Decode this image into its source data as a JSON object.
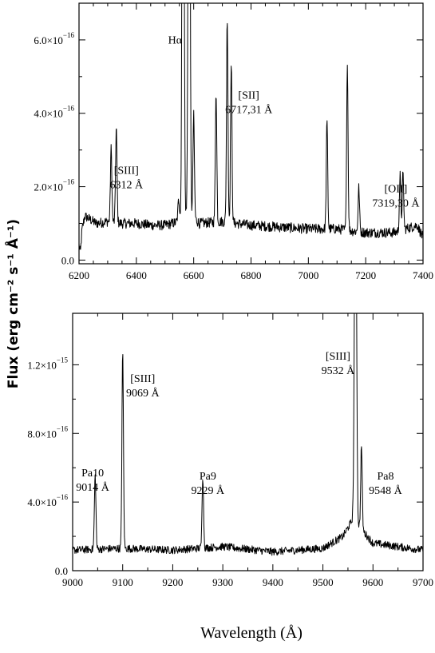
{
  "chart_data": [
    {
      "type": "line",
      "xlim": [
        6200,
        7400
      ],
      "ylim": [
        -0.1,
        7.0
      ],
      "y_scale_label": "×10⁻¹⁶",
      "x_ticks": [
        6200,
        6400,
        6600,
        6800,
        7000,
        7200,
        7400
      ],
      "y_ticks": [
        {
          "value": 0,
          "label": "0.0"
        },
        {
          "value": 2,
          "label": "2.0×10",
          "exp": "−16"
        },
        {
          "value": 4,
          "label": "4.0×10",
          "exp": "−16"
        },
        {
          "value": 6,
          "label": "6.0×10",
          "exp": "−16"
        }
      ],
      "continuum": [
        [
          6200,
          0.4
        ],
        [
          6205,
          0.2
        ],
        [
          6210,
          0.8
        ],
        [
          6220,
          1.2
        ],
        [
          6260,
          1.0
        ],
        [
          6300,
          1.05
        ],
        [
          6350,
          1.0
        ],
        [
          6400,
          1.0
        ],
        [
          6450,
          0.95
        ],
        [
          6500,
          0.95
        ],
        [
          6550,
          1.05
        ],
        [
          6580,
          1.3
        ],
        [
          6620,
          1.0
        ],
        [
          6700,
          1.05
        ],
        [
          6800,
          0.95
        ],
        [
          6900,
          0.9
        ],
        [
          7000,
          0.85
        ],
        [
          7100,
          0.85
        ],
        [
          7200,
          0.75
        ],
        [
          7300,
          0.75
        ],
        [
          7380,
          0.95
        ],
        [
          7400,
          0.6
        ]
      ],
      "lines": [
        {
          "x": 6312,
          "peak": 2.0,
          "w": 2.5
        },
        {
          "x": 6330,
          "peak": 2.6,
          "w": 2.5
        },
        {
          "x": 6548,
          "peak": 0.6,
          "w": 3
        },
        {
          "x": 6563,
          "peak": 20.0,
          "w": 3
        },
        {
          "x": 6584,
          "peak": 20.0,
          "w": 3
        },
        {
          "x": 6600,
          "peak": 2.8,
          "w": 2.5
        },
        {
          "x": 6678,
          "peak": 3.6,
          "w": 2.5
        },
        {
          "x": 6717,
          "peak": 5.6,
          "w": 2.5
        },
        {
          "x": 6731,
          "peak": 4.3,
          "w": 2.5
        },
        {
          "x": 7065,
          "peak": 2.9,
          "w": 2.5
        },
        {
          "x": 7136,
          "peak": 4.5,
          "w": 2.5
        },
        {
          "x": 7176,
          "peak": 1.2,
          "w": 2.5
        },
        {
          "x": 7320,
          "peak": 1.5,
          "w": 2.5
        },
        {
          "x": 7330,
          "peak": 1.5,
          "w": 2.5
        }
      ],
      "annotations": [
        {
          "id": "ha",
          "lines": [
            "Hα"
          ],
          "x": 6535,
          "y": 5.9
        },
        {
          "id": "sii",
          "lines": [
            "[SII]",
            "6717,31 Å"
          ],
          "x": 6792,
          "y": 4.4
        },
        {
          "id": "siii6312",
          "lines": [
            "[SIII]",
            "6312 Å"
          ],
          "x": 6365,
          "y": 2.35
        },
        {
          "id": "oii",
          "lines": [
            "[OII]",
            "7319,30 Å"
          ],
          "x": 7305,
          "y": 1.85
        }
      ]
    },
    {
      "type": "line",
      "xlim": [
        9000,
        9700
      ],
      "ylim": [
        0,
        15.0
      ],
      "x_ticks": [
        9000,
        9100,
        9200,
        9300,
        9400,
        9500,
        9600,
        9700
      ],
      "y_ticks": [
        {
          "value": 0,
          "label": "0.0"
        },
        {
          "value": 4,
          "label": "4.0×10",
          "exp": "−16"
        },
        {
          "value": 8,
          "label": "8.0×10",
          "exp": "−16"
        },
        {
          "value": 12,
          "label": "1.2×10",
          "exp": "−15"
        }
      ],
      "continuum": [
        [
          9000,
          1.2
        ],
        [
          9100,
          1.3
        ],
        [
          9200,
          1.2
        ],
        [
          9300,
          1.4
        ],
        [
          9400,
          1.1
        ],
        [
          9500,
          1.3
        ],
        [
          9540,
          2.0
        ],
        [
          9560,
          3.0
        ],
        [
          9600,
          1.6
        ],
        [
          9700,
          1.2
        ]
      ],
      "lines": [
        {
          "x": 9045,
          "peak": 4.3,
          "w": 1.5
        },
        {
          "x": 9100,
          "peak": 11.4,
          "w": 1.5
        },
        {
          "x": 9260,
          "peak": 4.2,
          "w": 1.5
        },
        {
          "x": 9565,
          "peak": 25.0,
          "w": 2.0
        },
        {
          "x": 9577,
          "peak": 4.9,
          "w": 1.5
        }
      ],
      "annotations": [
        {
          "id": "siii9069",
          "lines": [
            "[SIII]",
            "9069 Å"
          ],
          "x": 9140,
          "y": 11.0
        },
        {
          "id": "pa10",
          "lines": [
            "Pa10",
            "9014 Å"
          ],
          "x": 9040,
          "y": 5.5
        },
        {
          "id": "pa9",
          "lines": [
            "Pa9",
            "9229 Å"
          ],
          "x": 9270,
          "y": 5.3
        },
        {
          "id": "siii9532",
          "lines": [
            "[SIII]",
            "9532 Å"
          ],
          "x": 9530,
          "y": 12.3
        },
        {
          "id": "pa8",
          "lines": [
            "Pa8",
            "9548 Å"
          ],
          "x": 9625,
          "y": 5.3
        }
      ]
    }
  ],
  "axes": {
    "xlabel": "Wavelength (Å)",
    "ylabel": "Flux (erg cm⁻² s⁻¹ Å⁻¹)"
  }
}
